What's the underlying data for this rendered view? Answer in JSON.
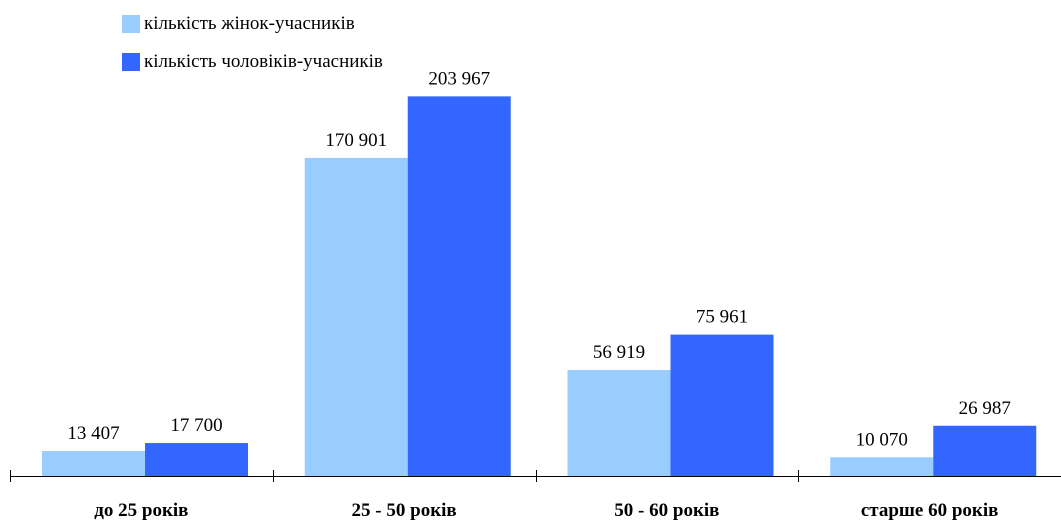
{
  "chart_data": {
    "type": "bar",
    "title": "",
    "xlabel": "",
    "ylabel": "",
    "categories": [
      "до 25 років",
      "25 - 50 років",
      "50 - 60 років",
      "старше 60 років"
    ],
    "series": [
      {
        "name": "кількість жінок-учасників",
        "color": "#99ccff",
        "values": [
          13407,
          170901,
          56919,
          10070
        ],
        "labels": [
          "13 407",
          "170 901",
          "56 919",
          "10 070"
        ]
      },
      {
        "name": "кількість чоловіків-учасників",
        "color": "#3366ff",
        "values": [
          17700,
          203967,
          75961,
          26987
        ],
        "labels": [
          "17 700",
          "203 967",
          "75 961",
          "26 987"
        ]
      }
    ],
    "ylim": [
      0,
      245000
    ],
    "grid": false,
    "legend_position": "top-left"
  }
}
